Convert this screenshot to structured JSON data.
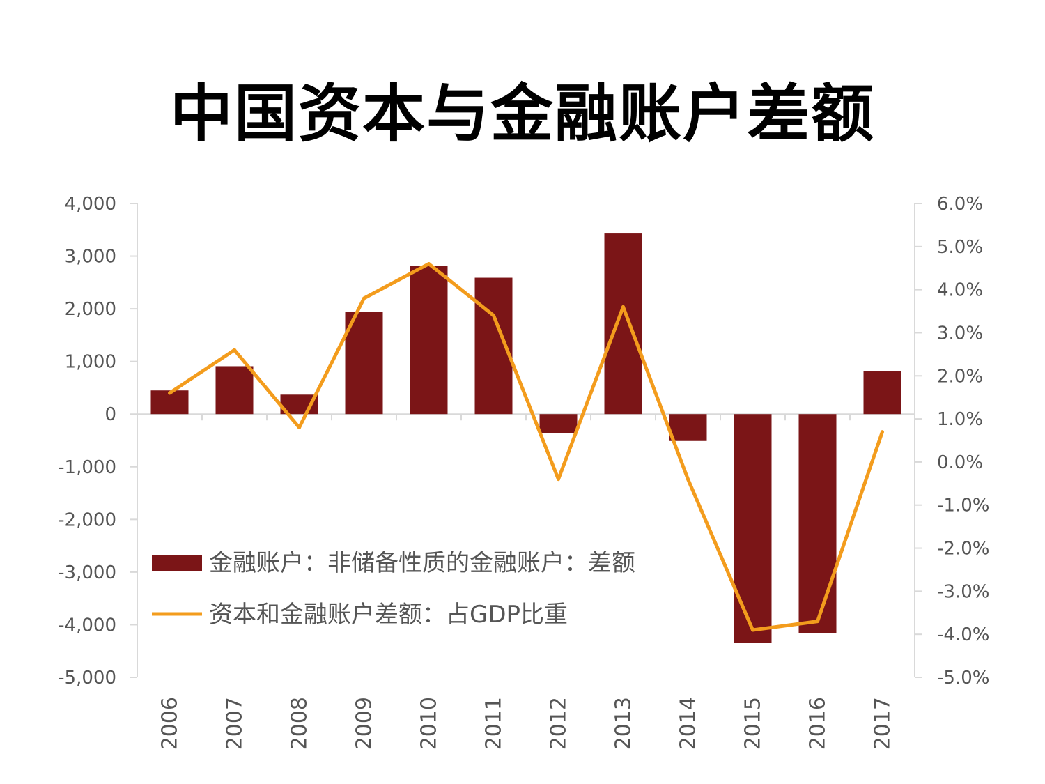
{
  "title": "中国资本与金融账户差额",
  "colors": {
    "bar": "#7b1517",
    "line": "#f39c1d",
    "axis": "#d9d9d9",
    "text": "#555555"
  },
  "chart_data": {
    "type": "bar+line",
    "title": "中国资本与金融账户差额",
    "categories": [
      "2006",
      "2007",
      "2008",
      "2009",
      "2010",
      "2011",
      "2012",
      "2013",
      "2014",
      "2015",
      "2016",
      "2017"
    ],
    "series": [
      {
        "name": "金融账户：非储备性质的金融账户：差额",
        "type": "bar",
        "axis": "left",
        "values": [
          450,
          910,
          370,
          1940,
          2820,
          2590,
          -360,
          3430,
          -510,
          -4350,
          -4160,
          820
        ]
      },
      {
        "name": "资本和金融账户差额：占GDP比重",
        "type": "line",
        "axis": "right",
        "values": [
          1.6,
          2.6,
          0.8,
          3.8,
          4.6,
          3.4,
          -0.4,
          3.6,
          -0.4,
          -3.9,
          -3.7,
          0.7
        ]
      }
    ],
    "left_axis": {
      "ylim": [
        -5000,
        4000
      ],
      "tick_labels": [
        "4,000",
        "3,000",
        "2,000",
        "1,000",
        "0",
        "-1,000",
        "-2,000",
        "-3,000",
        "-4,000",
        "-5,000"
      ]
    },
    "right_axis": {
      "ylim": [
        -5.0,
        6.0
      ],
      "tick_labels": [
        "6.0%",
        "5.0%",
        "4.0%",
        "3.0%",
        "2.0%",
        "1.0%",
        "0.0%",
        "-1.0%",
        "-2.0%",
        "-3.0%",
        "-4.0%",
        "-5.0%"
      ]
    },
    "legend_position": "bottom-left inside plot",
    "grid": false
  }
}
